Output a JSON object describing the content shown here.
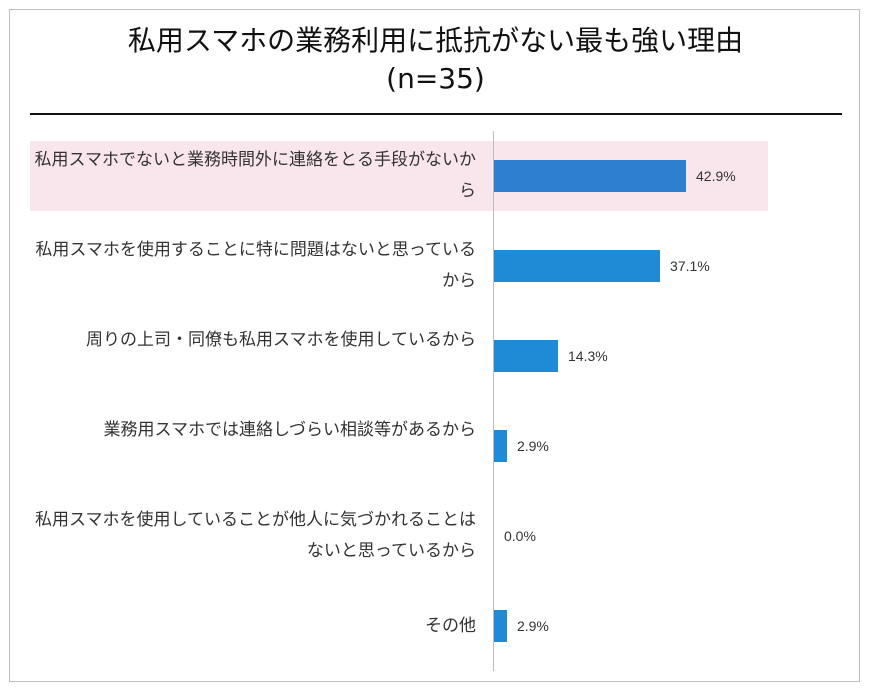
{
  "title": {
    "line1": "私用スマホの業務利用に抵抗がない最も強い理由",
    "line2": "(n=35)"
  },
  "colors": {
    "bar": "#1f8ad6",
    "bar_highlight": "#2f7fd0",
    "highlight_band": "#f9e6ec"
  },
  "chart_data": {
    "type": "bar",
    "orientation": "horizontal",
    "title": "私用スマホの業務利用に抵抗がない最も強い理由 (n=35)",
    "xlabel": "",
    "ylabel": "",
    "grid": false,
    "highlighted_category": 0,
    "categories": [
      "私用スマホでないと業務時間外に連絡をとる手段がないから",
      "私用スマホを使用することに特に問題はないと思っているから",
      "周りの上司・同僚も私用スマホを使用しているから",
      "業務用スマホでは連絡しづらい相談等があるから",
      "私用スマホを使用していることが他人に気づかれることはないと思っているから",
      "その他"
    ],
    "values": [
      42.9,
      37.1,
      14.3,
      2.9,
      0.0,
      2.9
    ],
    "value_labels": [
      "42.9%",
      "37.1%",
      "14.3%",
      "2.9%",
      "0.0%",
      "2.9%"
    ],
    "xlim": [
      0,
      100
    ]
  }
}
